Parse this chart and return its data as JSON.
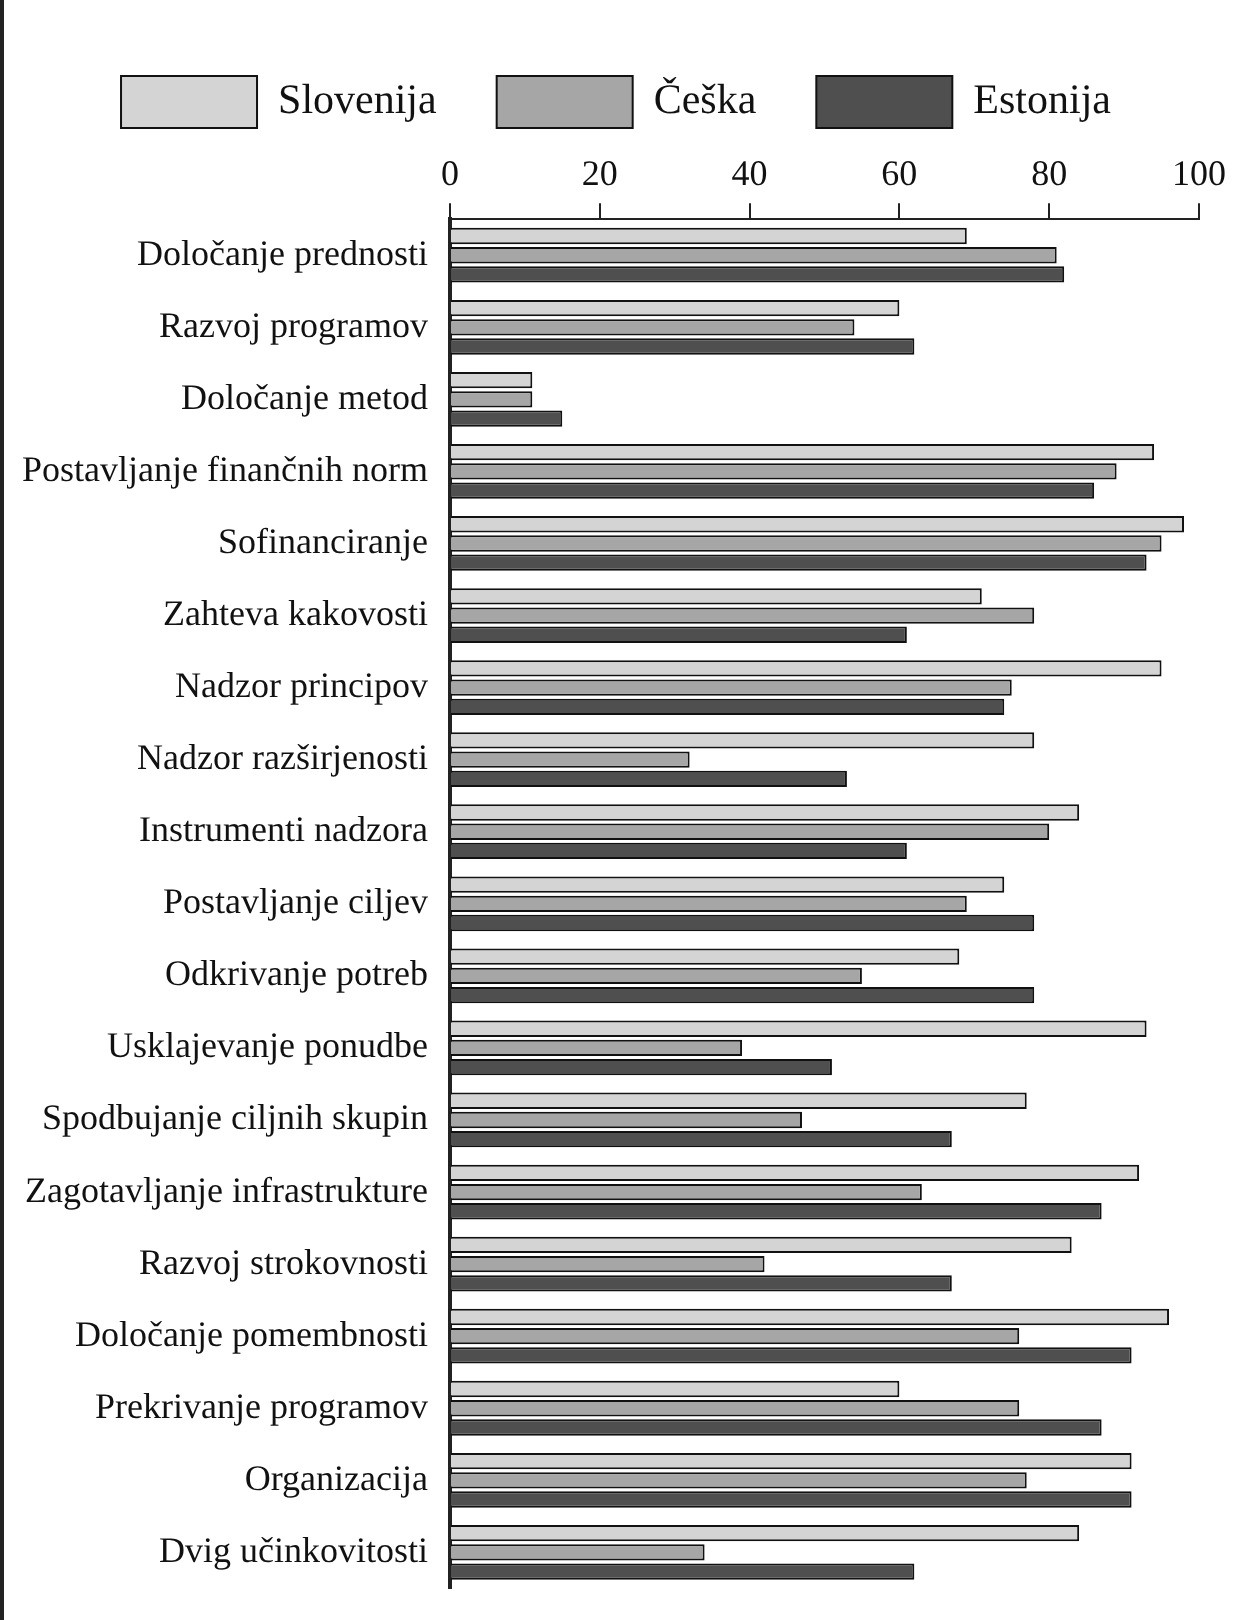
{
  "chart_data": {
    "type": "bar",
    "orientation": "horizontal",
    "legend": "top",
    "categories": [
      "Določanje prednosti",
      "Razvoj programov",
      "Določanje metod",
      "Postavljanje finančnih norm",
      "Sofinanciranje",
      "Zahteva kakovosti",
      "Nadzor principov",
      "Nadzor razširjenosti",
      "Instrumenti nadzora",
      "Postavljanje ciljev",
      "Odkrivanje potreb",
      "Usklajevanje ponudbe",
      "Spodbujanje ciljnih skupin",
      "Zagotavljanje infrastrukture",
      "Razvoj strokovnosti",
      "Določanje pomembnosti",
      "Prekrivanje programov",
      "Organizacija",
      "Dvig učinkovitosti"
    ],
    "series": [
      {
        "name": "Slovenija",
        "color": "#d4d4d4",
        "values": [
          69,
          60,
          11,
          94,
          98,
          71,
          95,
          78,
          84,
          74,
          68,
          93,
          77,
          92,
          83,
          96,
          60,
          91,
          84
        ]
      },
      {
        "name": "Češka",
        "color": "#a6a6a6",
        "values": [
          81,
          54,
          11,
          89,
          95,
          78,
          75,
          32,
          80,
          69,
          55,
          39,
          47,
          63,
          42,
          76,
          76,
          77,
          34
        ]
      },
      {
        "name": "Estonija",
        "color": "#4f4f4f",
        "values": [
          82,
          62,
          15,
          86,
          93,
          61,
          74,
          53,
          61,
          78,
          78,
          51,
          67,
          87,
          67,
          91,
          87,
          91,
          62
        ]
      }
    ],
    "xlim": [
      0,
      100
    ],
    "xticks": [
      0,
      20,
      40,
      60,
      80,
      100
    ]
  }
}
